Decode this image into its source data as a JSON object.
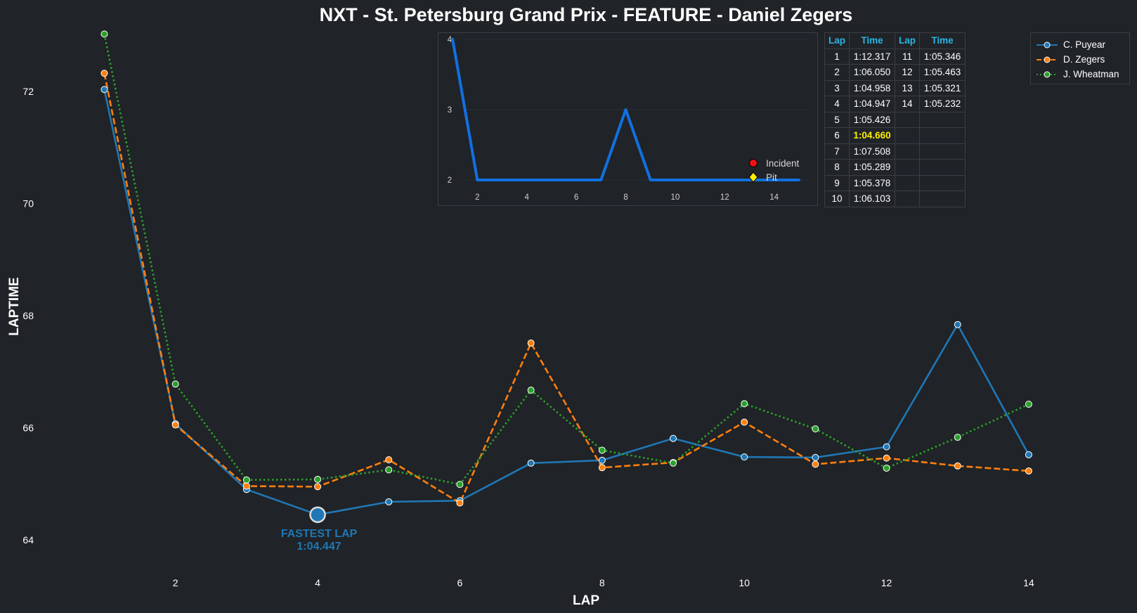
{
  "chart_data": [
    {
      "type": "line",
      "title": "NXT - St. Petersburg Grand Prix - FEATURE - Daniel Zegers",
      "xlabel": "LAP",
      "ylabel": "LAPTIME",
      "x": [
        1,
        2,
        3,
        4,
        5,
        6,
        7,
        8,
        9,
        10,
        11,
        12,
        13,
        14
      ],
      "xlim": [
        0.6,
        14.9
      ],
      "ylim": [
        63.5,
        73.1
      ],
      "xticks": [
        2,
        4,
        6,
        8,
        10,
        12,
        14
      ],
      "yticks": [
        64,
        66,
        68,
        70,
        72
      ],
      "grid": false,
      "legend_position": "top-right",
      "series": [
        {
          "name": "C. Puyear",
          "color": "#1f77b4",
          "style": "solid",
          "values": [
            72.03,
            66.07,
            64.9,
            64.45,
            64.68,
            64.7,
            65.37,
            65.42,
            65.81,
            65.48,
            65.47,
            65.66,
            67.84,
            65.52
          ]
        },
        {
          "name": "D. Zegers",
          "color": "#ff7f0e",
          "style": "dashed",
          "values": [
            72.32,
            66.05,
            64.96,
            64.95,
            65.43,
            64.66,
            67.51,
            65.29,
            65.38,
            66.1,
            65.35,
            65.46,
            65.32,
            65.23
          ]
        },
        {
          "name": "J. Wheatman",
          "color": "#2ca02c",
          "style": "dotted",
          "values": [
            73.02,
            66.78,
            65.07,
            65.08,
            65.25,
            64.99,
            66.67,
            65.6,
            65.37,
            66.43,
            65.98,
            65.28,
            65.83,
            66.42
          ]
        }
      ],
      "annotation": {
        "lap": 4,
        "value": 64.45,
        "label": "FASTEST LAP",
        "time": "1:04.447",
        "color": "#1f77b4"
      }
    },
    {
      "type": "line",
      "title": "",
      "x": [
        1,
        2,
        3,
        4,
        5,
        6,
        7,
        8,
        9,
        10,
        11,
        12,
        13,
        14,
        15
      ],
      "values": [
        4,
        2,
        2,
        2,
        2,
        2,
        2,
        3,
        2,
        2,
        2,
        2,
        2,
        2,
        2
      ],
      "xticks": [
        2,
        4,
        6,
        8,
        10,
        12,
        14
      ],
      "yticks": [
        2,
        3,
        4
      ],
      "xlim": [
        0.6,
        15.6
      ],
      "ylim": [
        4.06,
        1.86
      ],
      "color": "#1170e0",
      "legend": [
        {
          "label": "Incident",
          "marker": "circle",
          "color": "#ee1111"
        },
        {
          "label": "Pit",
          "marker": "diamond",
          "color": "#ffee00"
        }
      ]
    },
    {
      "type": "table",
      "headers": [
        "Lap",
        "Time",
        "Lap",
        "Time"
      ],
      "rows": [
        [
          "1",
          "1:12.317",
          "11",
          "1:05.346"
        ],
        [
          "2",
          "1:06.050",
          "12",
          "1:05.463"
        ],
        [
          "3",
          "1:04.958",
          "13",
          "1:05.321"
        ],
        [
          "4",
          "1:04.947",
          "14",
          "1:05.232"
        ],
        [
          "5",
          "1:05.426",
          "",
          ""
        ],
        [
          "6",
          "1:04.660",
          "",
          ""
        ],
        [
          "7",
          "1:07.508",
          "",
          ""
        ],
        [
          "8",
          "1:05.289",
          "",
          ""
        ],
        [
          "9",
          "1:05.378",
          "",
          ""
        ],
        [
          "10",
          "1:06.103",
          "",
          ""
        ]
      ],
      "highlight_row": 5,
      "highlight_color": "#ffee00"
    }
  ]
}
